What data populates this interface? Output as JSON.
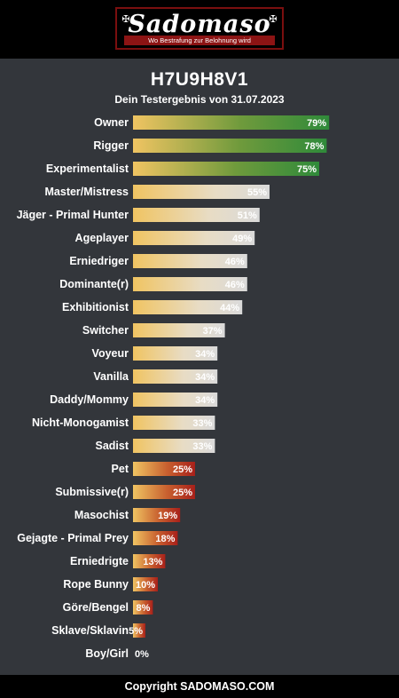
{
  "header": {
    "logo_text": "Sadomaso",
    "logo_tagline": "Wo Bestrafung zur Belohnung wird"
  },
  "title": "H7U9H8V1",
  "subtitle": "Dein Testergebnis von 31.07.2023",
  "footer": "Copyright SADOMASO.COM",
  "colors": {
    "bar_start": "#f0c462",
    "high": "#2f8a3a",
    "mid": "#dadada",
    "low": "#a8201a",
    "background": "#33363b"
  },
  "chart_data": {
    "type": "bar",
    "orientation": "horizontal",
    "xlim": [
      0,
      100
    ],
    "categories": [
      "Owner",
      "Rigger",
      "Experimentalist",
      "Master/Mistress",
      "Jäger - Primal Hunter",
      "Ageplayer",
      "Erniedriger",
      "Dominante(r)",
      "Exhibitionist",
      "Switcher",
      "Voyeur",
      "Vanilla",
      "Daddy/Mommy",
      "Nicht-Monogamist",
      "Sadist",
      "Pet",
      "Submissive(r)",
      "Masochist",
      "Gejagte - Primal Prey",
      "Erniedrigte",
      "Rope Bunny",
      "Göre/Bengel",
      "Sklave/Sklavin",
      "Boy/Girl"
    ],
    "values": [
      79,
      78,
      75,
      55,
      51,
      49,
      46,
      46,
      44,
      37,
      34,
      34,
      34,
      33,
      33,
      25,
      25,
      19,
      18,
      13,
      10,
      8,
      5,
      0
    ],
    "value_labels": [
      "79%",
      "78%",
      "75%",
      "55%",
      "51%",
      "49%",
      "46%",
      "46%",
      "44%",
      "37%",
      "34%",
      "34%",
      "34%",
      "33%",
      "33%",
      "25%",
      "25%",
      "19%",
      "18%",
      "13%",
      "10%",
      "8%",
      "5%",
      "0%"
    ],
    "tiers": [
      "high",
      "high",
      "high",
      "mid",
      "mid",
      "mid",
      "mid",
      "mid",
      "mid",
      "mid",
      "mid",
      "mid",
      "mid",
      "mid",
      "mid",
      "low",
      "low",
      "low",
      "low",
      "low",
      "low",
      "low",
      "low",
      "low"
    ]
  }
}
